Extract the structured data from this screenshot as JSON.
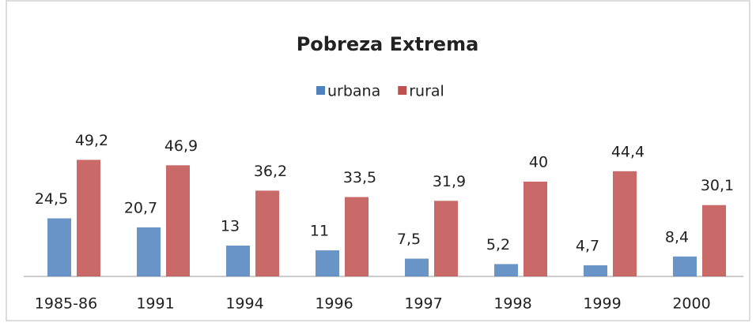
{
  "chart_data": {
    "type": "bar",
    "title": "Pobreza Extrema",
    "categories": [
      "1985-86",
      "1991",
      "1994",
      "1996",
      "1997",
      "1998",
      "1999",
      "2000"
    ],
    "series": [
      {
        "name": "urbana",
        "color": "#4f81bd",
        "values": [
          24.5,
          20.7,
          13,
          11,
          7.5,
          5.2,
          4.7,
          8.4
        ],
        "value_labels": [
          "24,5",
          "20,7",
          "13",
          "11",
          "7,5",
          "5,2",
          "4,7",
          "8,4"
        ]
      },
      {
        "name": "rural",
        "color": "#c0504d",
        "values": [
          49.2,
          46.9,
          36.2,
          33.5,
          31.9,
          40,
          44.4,
          30.1
        ],
        "value_labels": [
          "49,2",
          "46,9",
          "36,2",
          "33,5",
          "31,9",
          "40",
          "44,4",
          "30,1"
        ]
      }
    ],
    "ylim": [
      0,
      60
    ]
  }
}
